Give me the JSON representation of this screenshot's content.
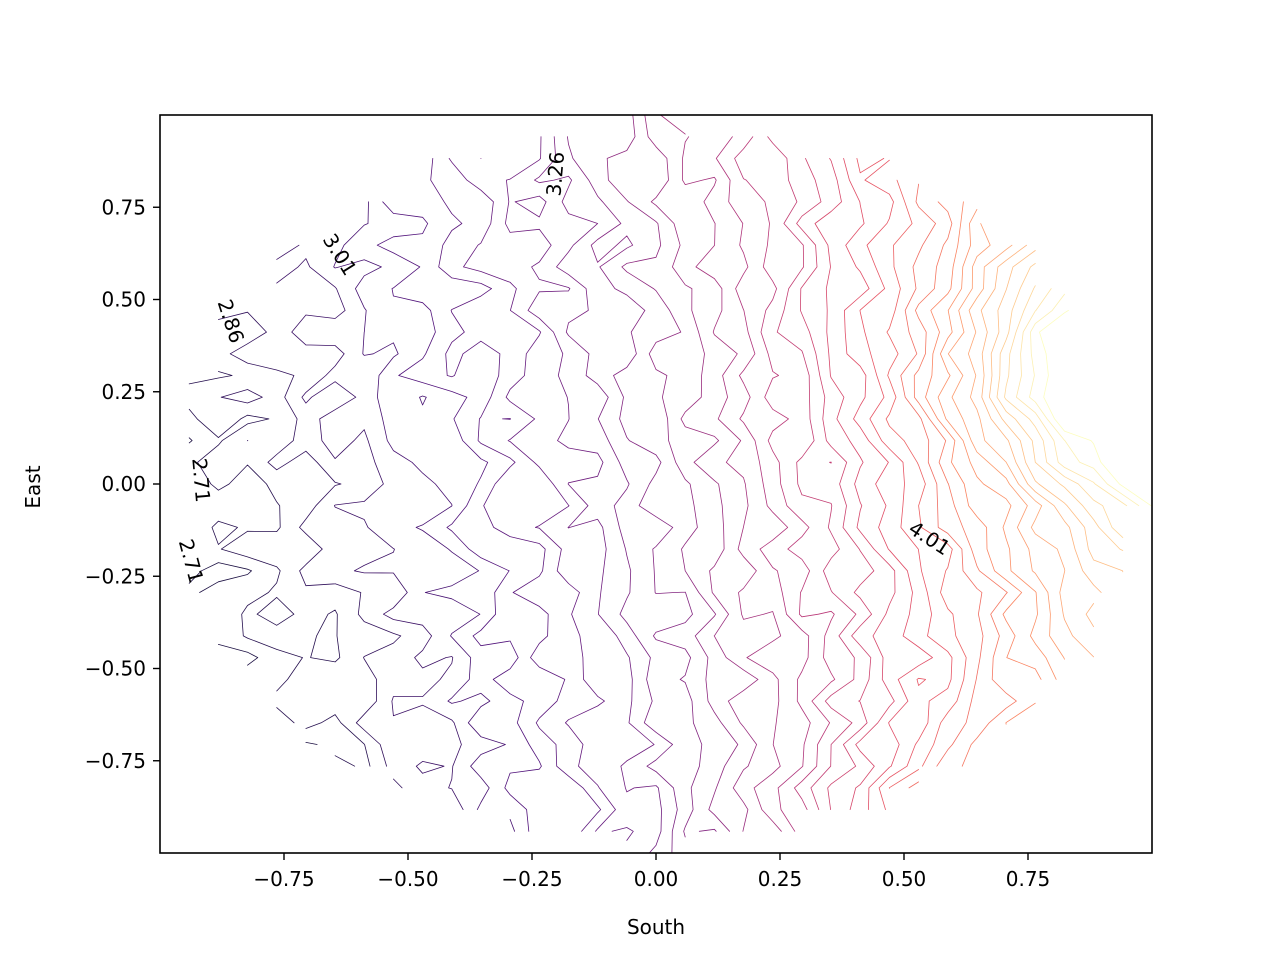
{
  "chart_data": {
    "type": "contour",
    "title": "",
    "xlabel": "South",
    "ylabel": "East",
    "xlim": [
      -1.0,
      1.0
    ],
    "ylim": [
      -1.0,
      1.0
    ],
    "domain": "unit disk",
    "grid": false,
    "legend": "none",
    "colormap": "magma",
    "x_ticks": [
      {
        "value": -0.75,
        "label": "−0.75"
      },
      {
        "value": -0.5,
        "label": "−0.50"
      },
      {
        "value": -0.25,
        "label": "−0.25"
      },
      {
        "value": 0.0,
        "label": "0.00"
      },
      {
        "value": 0.25,
        "label": "0.25"
      },
      {
        "value": 0.5,
        "label": "0.50"
      },
      {
        "value": 0.75,
        "label": "0.75"
      }
    ],
    "y_ticks": [
      {
        "value": 0.75,
        "label": "0.75"
      },
      {
        "value": 0.5,
        "label": "0.50"
      },
      {
        "value": 0.25,
        "label": "0.25"
      },
      {
        "value": 0.0,
        "label": "0.00"
      },
      {
        "value": -0.25,
        "label": "−0.25"
      },
      {
        "value": -0.5,
        "label": "−0.50"
      },
      {
        "value": -0.75,
        "label": "−0.75"
      }
    ],
    "level_range": [
      2.66,
      4.61
    ],
    "level_step": 0.05,
    "contour_labels": [
      {
        "text": "3.26",
        "x": -0.2,
        "y": 0.84,
        "angle": -85
      },
      {
        "text": "3.01",
        "x": -0.64,
        "y": 0.62,
        "angle": 58
      },
      {
        "text": "2.86",
        "x": -0.86,
        "y": 0.44,
        "angle": 72
      },
      {
        "text": "2.71",
        "x": -0.92,
        "y": 0.01,
        "angle": 85
      },
      {
        "text": "2.71",
        "x": -0.94,
        "y": -0.21,
        "angle": 75
      },
      {
        "text": "4.01",
        "x": 0.55,
        "y": -0.15,
        "angle": 33
      }
    ]
  }
}
